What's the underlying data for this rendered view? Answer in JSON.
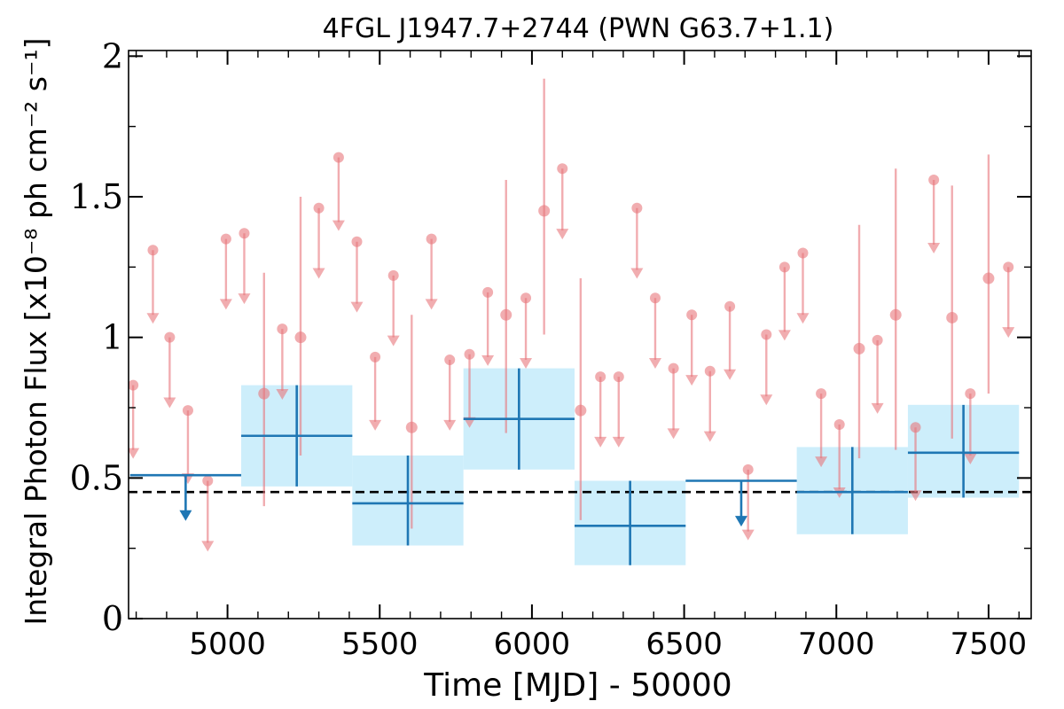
{
  "chart_data": {
    "type": "scatter",
    "title": "4FGL J1947.7+2744 (PWN G63.7+1.1)",
    "xlabel": "Time [MJD] - 50000",
    "ylabel": "Integral Photon Flux [x10⁻⁸ ph cm⁻² s⁻¹]",
    "xlim": [
      4675,
      7640
    ],
    "ylim": [
      0,
      2.02
    ],
    "xticks": [
      5000,
      5500,
      6000,
      6500,
      7000,
      7500
    ],
    "yticks": [
      0,
      0.5,
      1,
      1.5,
      2
    ],
    "xtick_labels": [
      "5000",
      "5500",
      "6000",
      "6500",
      "7000",
      "7500"
    ],
    "ytick_labels": [
      "0",
      "0.5",
      "1",
      "1.5",
      "2"
    ],
    "reference_line": {
      "y": 0.45,
      "style": "dashed",
      "color": "#000000"
    },
    "colors": {
      "short_bins": "#e8767c",
      "long_bins": "#1f77b4",
      "long_band": "#cdeefb"
    },
    "series": [
      {
        "kind": "short_bins_upper_limits",
        "points": [
          {
            "x": 4690,
            "y": 0.83,
            "y_lim": 0.6
          },
          {
            "x": 4755,
            "y": 1.31,
            "y_lim": 1.08
          },
          {
            "x": 4810,
            "y": 1.0,
            "y_lim": 0.78
          },
          {
            "x": 4870,
            "y": 0.74,
            "y_lim": 0.51
          },
          {
            "x": 4995,
            "y": 1.35,
            "y_lim": 1.13
          },
          {
            "x": 5055,
            "y": 1.37,
            "y_lim": 1.15
          },
          {
            "x": 5180,
            "y": 1.03,
            "y_lim": 0.81
          },
          {
            "x": 5300,
            "y": 1.46,
            "y_lim": 1.24
          },
          {
            "x": 5365,
            "y": 1.64,
            "y_lim": 1.41
          },
          {
            "x": 5425,
            "y": 1.34,
            "y_lim": 1.12
          },
          {
            "x": 5485,
            "y": 0.93,
            "y_lim": 0.7
          },
          {
            "x": 5545,
            "y": 1.22,
            "y_lim": 1.0
          },
          {
            "x": 5670,
            "y": 1.35,
            "y_lim": 1.13
          },
          {
            "x": 5730,
            "y": 0.92,
            "y_lim": 0.7
          },
          {
            "x": 5795,
            "y": 0.94,
            "y_lim": 0.71
          },
          {
            "x": 5855,
            "y": 1.16,
            "y_lim": 0.93
          },
          {
            "x": 5980,
            "y": 1.14,
            "y_lim": 0.92
          },
          {
            "x": 6100,
            "y": 1.6,
            "y_lim": 1.38
          },
          {
            "x": 6225,
            "y": 0.86,
            "y_lim": 0.64
          },
          {
            "x": 6285,
            "y": 0.86,
            "y_lim": 0.64
          },
          {
            "x": 6345,
            "y": 1.46,
            "y_lim": 1.24
          },
          {
            "x": 6405,
            "y": 1.14,
            "y_lim": 0.92
          },
          {
            "x": 6465,
            "y": 0.89,
            "y_lim": 0.67
          },
          {
            "x": 6525,
            "y": 1.08,
            "y_lim": 0.86
          },
          {
            "x": 6585,
            "y": 0.88,
            "y_lim": 0.66
          },
          {
            "x": 6650,
            "y": 1.11,
            "y_lim": 0.88
          },
          {
            "x": 6710,
            "y": 0.53,
            "y_lim": 0.31
          },
          {
            "x": 6770,
            "y": 1.01,
            "y_lim": 0.79
          },
          {
            "x": 6830,
            "y": 1.25,
            "y_lim": 1.02
          },
          {
            "x": 6890,
            "y": 1.3,
            "y_lim": 1.08
          },
          {
            "x": 6950,
            "y": 0.8,
            "y_lim": 0.57
          },
          {
            "x": 7010,
            "y": 0.69,
            "y_lim": 0.46
          },
          {
            "x": 7135,
            "y": 0.99,
            "y_lim": 0.76
          },
          {
            "x": 7260,
            "y": 0.68,
            "y_lim": 0.45
          },
          {
            "x": 7320,
            "y": 1.56,
            "y_lim": 1.33
          },
          {
            "x": 7440,
            "y": 0.8,
            "y_lim": 0.58
          },
          {
            "x": 7565,
            "y": 1.25,
            "y_lim": 1.03
          },
          {
            "x": 4935,
            "y": 0.49,
            "y_lim": 0.27
          }
        ]
      },
      {
        "kind": "short_bins_detections",
        "points": [
          {
            "x": 5120,
            "y": 0.8,
            "y_lo": 0.4,
            "y_hi": 1.23
          },
          {
            "x": 5240,
            "y": 1.0,
            "y_lo": 0.58,
            "y_hi": 1.5
          },
          {
            "x": 5605,
            "y": 0.68,
            "y_lo": 0.32,
            "y_hi": 1.08
          },
          {
            "x": 5915,
            "y": 1.08,
            "y_lo": 0.66,
            "y_hi": 1.56
          },
          {
            "x": 6040,
            "y": 1.45,
            "y_lo": 1.01,
            "y_hi": 1.92
          },
          {
            "x": 6160,
            "y": 0.74,
            "y_lo": 0.35,
            "y_hi": 1.21
          },
          {
            "x": 7075,
            "y": 0.96,
            "y_lo": 0.57,
            "y_hi": 1.4
          },
          {
            "x": 7195,
            "y": 1.08,
            "y_lo": 0.6,
            "y_hi": 1.6
          },
          {
            "x": 7380,
            "y": 1.07,
            "y_lo": 0.64,
            "y_hi": 1.54
          },
          {
            "x": 7500,
            "y": 1.21,
            "y_lo": 0.8,
            "y_hi": 1.65
          }
        ]
      },
      {
        "kind": "long_bins_detections",
        "bins": [
          {
            "x0": 5045,
            "x1": 5410,
            "y": 0.65,
            "y_lo": 0.47,
            "y_hi": 0.83,
            "band_lo": 0.47,
            "band_hi": 0.83
          },
          {
            "x0": 5410,
            "x1": 5775,
            "y": 0.41,
            "y_lo": 0.26,
            "y_hi": 0.58,
            "band_lo": 0.26,
            "band_hi": 0.58
          },
          {
            "x0": 5775,
            "x1": 6140,
            "y": 0.71,
            "y_lo": 0.53,
            "y_hi": 0.89,
            "band_lo": 0.53,
            "band_hi": 0.89
          },
          {
            "x0": 6140,
            "x1": 6505,
            "y": 0.33,
            "y_lo": 0.19,
            "y_hi": 0.49,
            "band_lo": 0.19,
            "band_hi": 0.49
          },
          {
            "x0": 6870,
            "x1": 7235,
            "y": 0.45,
            "y_lo": 0.3,
            "y_hi": 0.61,
            "band_lo": 0.3,
            "band_hi": 0.61
          },
          {
            "x0": 7235,
            "x1": 7600,
            "y": 0.59,
            "y_lo": 0.43,
            "y_hi": 0.76,
            "band_lo": 0.43,
            "band_hi": 0.76
          }
        ]
      },
      {
        "kind": "long_bins_upper_limits",
        "bins": [
          {
            "x0": 4680,
            "x1": 5045,
            "y": 0.51,
            "y_lim": 0.36
          },
          {
            "x0": 6505,
            "x1": 6870,
            "y": 0.49,
            "y_lim": 0.34
          }
        ]
      }
    ]
  }
}
